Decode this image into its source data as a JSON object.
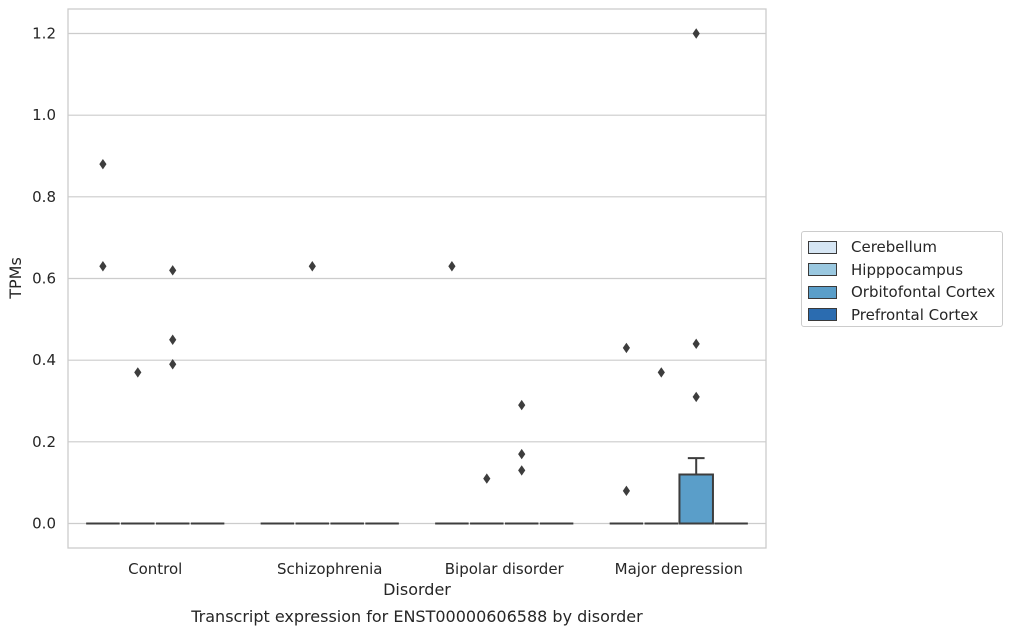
{
  "chart_data": {
    "type": "box",
    "title": "",
    "caption": "Transcript expression for ENST00000606588 by disorder",
    "xlabel": "Disorder",
    "ylabel": "TPMs",
    "ylim": [
      -0.06,
      1.26
    ],
    "yticks": [
      "0.0",
      "0.2",
      "0.4",
      "0.6",
      "0.8",
      "1.0",
      "1.2"
    ],
    "ytick_values": [
      0.0,
      0.2,
      0.4,
      0.6,
      0.8,
      1.0,
      1.2
    ],
    "grid": true,
    "legend_placement": "right-outside",
    "categories": [
      "Control",
      "Schizophrenia",
      "Bipolar disorder",
      "Major depression"
    ],
    "series": [
      {
        "name": "Cerebellum",
        "color": "#d6e6f4",
        "boxes": [
          {
            "category": "Control",
            "q1": 0,
            "median": 0,
            "q3": 0,
            "whisker_low": 0,
            "whisker_high": 0,
            "outliers": [
              0.88,
              0.63
            ]
          },
          {
            "category": "Schizophrenia",
            "q1": 0,
            "median": 0,
            "q3": 0,
            "whisker_low": 0,
            "whisker_high": 0,
            "outliers": []
          },
          {
            "category": "Bipolar disorder",
            "q1": 0,
            "median": 0,
            "q3": 0,
            "whisker_low": 0,
            "whisker_high": 0,
            "outliers": [
              0.63
            ]
          },
          {
            "category": "Major depression",
            "q1": 0,
            "median": 0,
            "q3": 0,
            "whisker_low": 0,
            "whisker_high": 0,
            "outliers": [
              0.43,
              0.08
            ]
          }
        ]
      },
      {
        "name": "Hipppocampus",
        "color": "#9ac8e0",
        "boxes": [
          {
            "category": "Control",
            "q1": 0,
            "median": 0,
            "q3": 0,
            "whisker_low": 0,
            "whisker_high": 0,
            "outliers": [
              0.37
            ]
          },
          {
            "category": "Schizophrenia",
            "q1": 0,
            "median": 0,
            "q3": 0,
            "whisker_low": 0,
            "whisker_high": 0,
            "outliers": [
              0.63
            ]
          },
          {
            "category": "Bipolar disorder",
            "q1": 0,
            "median": 0,
            "q3": 0,
            "whisker_low": 0,
            "whisker_high": 0,
            "outliers": [
              0.11
            ]
          },
          {
            "category": "Major depression",
            "q1": 0,
            "median": 0,
            "q3": 0,
            "whisker_low": 0,
            "whisker_high": 0,
            "outliers": [
              0.37
            ]
          }
        ]
      },
      {
        "name": "Orbitofontal Cortex",
        "color": "#5a9ec9",
        "boxes": [
          {
            "category": "Control",
            "q1": 0,
            "median": 0,
            "q3": 0,
            "whisker_low": 0,
            "whisker_high": 0,
            "outliers": [
              0.62,
              0.45,
              0.39
            ]
          },
          {
            "category": "Schizophrenia",
            "q1": 0,
            "median": 0,
            "q3": 0,
            "whisker_low": 0,
            "whisker_high": 0,
            "outliers": []
          },
          {
            "category": "Bipolar disorder",
            "q1": 0,
            "median": 0,
            "q3": 0,
            "whisker_low": 0,
            "whisker_high": 0,
            "outliers": [
              0.29,
              0.17,
              0.13
            ]
          },
          {
            "category": "Major depression",
            "q1": 0,
            "median": 0,
            "q3": 0.12,
            "whisker_low": 0,
            "whisker_high": 0.16,
            "outliers": [
              1.2,
              0.44,
              0.31
            ]
          }
        ]
      },
      {
        "name": "Prefrontal Cortex",
        "color": "#2b6cb0",
        "boxes": [
          {
            "category": "Control",
            "q1": 0,
            "median": 0,
            "q3": 0,
            "whisker_low": 0,
            "whisker_high": 0,
            "outliers": []
          },
          {
            "category": "Schizophrenia",
            "q1": 0,
            "median": 0,
            "q3": 0,
            "whisker_low": 0,
            "whisker_high": 0,
            "outliers": []
          },
          {
            "category": "Bipolar disorder",
            "q1": 0,
            "median": 0,
            "q3": 0,
            "whisker_low": 0,
            "whisker_high": 0,
            "outliers": []
          },
          {
            "category": "Major depression",
            "q1": 0,
            "median": 0,
            "q3": 0,
            "whisker_low": 0,
            "whisker_high": 0,
            "outliers": []
          }
        ]
      }
    ]
  },
  "legend": {
    "items": [
      {
        "label": "Cerebellum",
        "color": "#d6e6f4"
      },
      {
        "label": "Hipppocampus",
        "color": "#9ac8e0"
      },
      {
        "label": "Orbitofontal Cortex",
        "color": "#5a9ec9"
      },
      {
        "label": "Prefrontal Cortex",
        "color": "#2b6cb0"
      }
    ]
  }
}
